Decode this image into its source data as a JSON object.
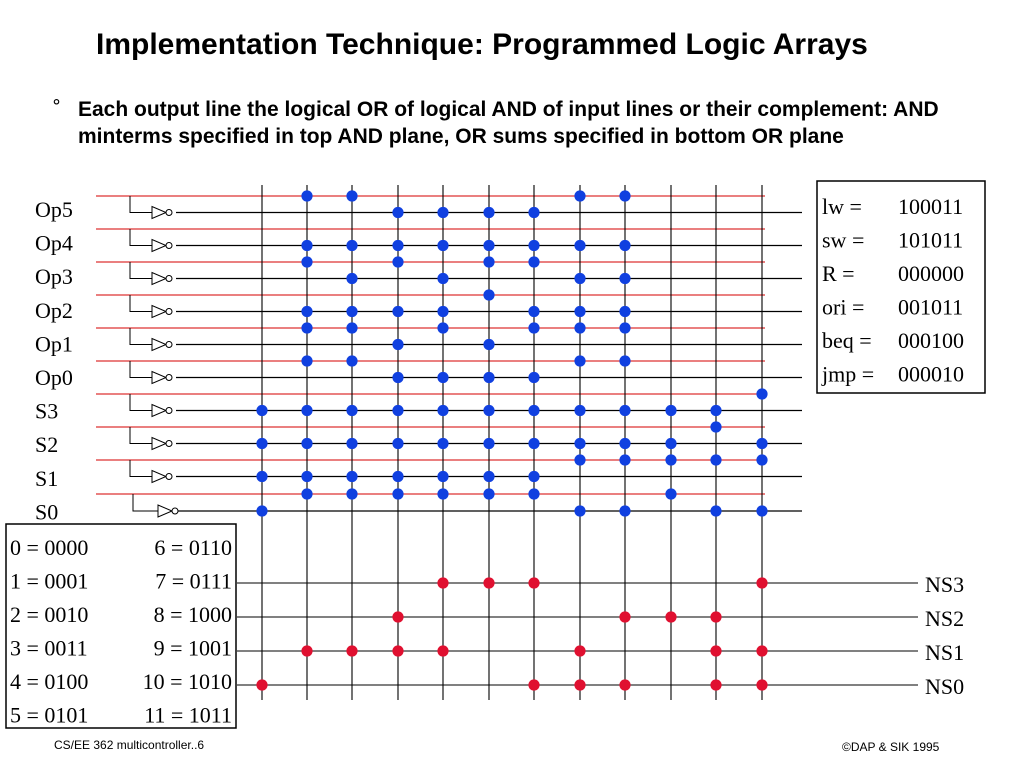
{
  "title": "Implementation Technique: Programmed Logic Arrays",
  "bullet_symbol": "°",
  "bullet_text": "Each output line the logical OR of logical AND of input lines or their complement: AND minterms specified in top AND plane, OR sums specified in bottom OR plane",
  "inputs": [
    "Op5",
    "Op4",
    "Op3",
    "Op2",
    "Op1",
    "Op0",
    "S3",
    "S2",
    "S1",
    "S0"
  ],
  "outputs": [
    "NS3",
    "NS2",
    "NS1",
    "NS0"
  ],
  "opcodes": [
    {
      "label": "lw =",
      "value": "100011"
    },
    {
      "label": "sw =",
      "value": "101011"
    },
    {
      "label": "R =",
      "value": "000000"
    },
    {
      "label": "ori =",
      "value": "001011"
    },
    {
      "label": "beq =",
      "value": "000100"
    },
    {
      "label": "jmp =",
      "value": "000010"
    }
  ],
  "states": [
    {
      "left": "0 = 0000",
      "right": "6 = 0110"
    },
    {
      "left": "1 = 0001",
      "right": "7 = 0111"
    },
    {
      "left": "2 = 0010",
      "right": "8 = 1000"
    },
    {
      "left": "3 = 0011",
      "right": "9 = 1001"
    },
    {
      "left": "4 = 0100",
      "right": "10 = 1010"
    },
    {
      "left": "5 = 0101",
      "right": "11 = 1011"
    }
  ],
  "and_plane": {
    "colors": {
      "dot": "#1040e0",
      "line_true": "#dd3333",
      "line_comp": "#000000"
    },
    "connections": [
      {
        "column": 0,
        "rows": [
          13,
          15,
          17,
          19
        ]
      },
      {
        "column": 1,
        "rows": [
          0,
          3,
          4,
          7,
          8,
          10,
          13,
          15,
          17,
          18
        ]
      },
      {
        "column": 2,
        "rows": [
          0,
          3,
          5,
          7,
          8,
          10,
          13,
          15,
          17,
          18
        ]
      },
      {
        "column": 3,
        "rows": [
          1,
          3,
          4,
          7,
          9,
          11,
          13,
          15,
          17,
          18
        ]
      },
      {
        "column": 4,
        "rows": [
          1,
          3,
          5,
          7,
          8,
          11,
          13,
          15,
          17,
          18
        ]
      },
      {
        "column": 5,
        "rows": [
          1,
          3,
          4,
          6,
          9,
          11,
          13,
          15,
          17,
          18
        ]
      },
      {
        "column": 6,
        "rows": [
          1,
          3,
          4,
          7,
          8,
          11,
          13,
          15,
          17,
          18
        ]
      },
      {
        "column": 7,
        "rows": [
          0,
          3,
          5,
          7,
          8,
          10,
          13,
          15,
          16,
          19
        ]
      },
      {
        "column": 8,
        "rows": [
          0,
          3,
          5,
          7,
          8,
          10,
          13,
          15,
          16,
          19
        ]
      },
      {
        "column": 9,
        "rows": [
          13,
          15,
          16,
          18
        ]
      },
      {
        "column": 10,
        "rows": [
          13,
          14,
          16,
          19
        ]
      },
      {
        "column": 11,
        "rows": [
          12,
          15,
          16,
          19
        ]
      }
    ]
  },
  "or_plane": {
    "colors": {
      "dot": "#e01030"
    },
    "connections": [
      {
        "output": 0,
        "columns": [
          4,
          5,
          6,
          11
        ]
      },
      {
        "output": 1,
        "columns": [
          3,
          8,
          9,
          10
        ]
      },
      {
        "output": 2,
        "columns": [
          1,
          2,
          3,
          4,
          7,
          10,
          11
        ]
      },
      {
        "output": 3,
        "columns": [
          0,
          6,
          7,
          8,
          10,
          11
        ]
      }
    ]
  },
  "footer_left": "CS/EE 362 multicontroller..6",
  "footer_right": "©DAP & SIK 1995"
}
